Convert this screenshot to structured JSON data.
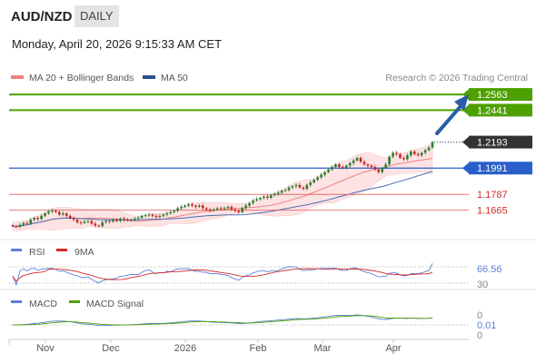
{
  "header": {
    "pair": "AUD/NZD",
    "timeframe": "DAILY",
    "datetime": "Monday, April 20, 2026 9:15:33 AM CET"
  },
  "legend": {
    "ma20_label": "MA 20 + Bollinger Bands",
    "ma50_label": "MA 50",
    "credit": "Research © 2026 Trading Central"
  },
  "colors": {
    "resistance": "#4ea000",
    "pivot": "#2a5fc9",
    "support": "#e05a5a",
    "current": "#333333",
    "arrow": "#2a5ca8",
    "candle_up": "#2e7d32",
    "candle_down": "#c62828",
    "ma20": "#f08080",
    "ma50": "#4a6fb5",
    "bands_fill": "#fde3e3",
    "rsi": "#5b7fd9",
    "rsi_ma": "#d42a2a",
    "macd": "#5b7fd9",
    "macd_signal": "#4ea000"
  },
  "chart_data": [
    {
      "type": "candlestick",
      "ylim": [
        1.145,
        1.262
      ],
      "x_labels": [
        "Nov",
        "Dec",
        "2026",
        "Feb",
        "Mar",
        "Apr"
      ],
      "levels": [
        {
          "value": 1.2563,
          "label": "1.2563",
          "kind": "resistance"
        },
        {
          "value": 1.2441,
          "label": "1.2441",
          "kind": "resistance"
        },
        {
          "value": 1.2193,
          "label": "1.2193",
          "kind": "current"
        },
        {
          "value": 1.1991,
          "label": "1.1991",
          "kind": "pivot"
        },
        {
          "value": 1.1787,
          "label": "1.1787",
          "kind": "support"
        },
        {
          "value": 1.1665,
          "label": "1.1665",
          "kind": "support"
        }
      ],
      "close": [
        1.154,
        1.1535,
        1.155,
        1.1565,
        1.156,
        1.159,
        1.1605,
        1.1595,
        1.162,
        1.164,
        1.1655,
        1.166,
        1.165,
        1.163,
        1.164,
        1.162,
        1.16,
        1.159,
        1.157,
        1.1565,
        1.1575,
        1.158,
        1.156,
        1.1545,
        1.154,
        1.157,
        1.158,
        1.1575,
        1.159,
        1.158,
        1.16,
        1.159,
        1.1585,
        1.159,
        1.16,
        1.1605,
        1.162,
        1.1625,
        1.163,
        1.162,
        1.161,
        1.162,
        1.163,
        1.164,
        1.165,
        1.166,
        1.168,
        1.169,
        1.17,
        1.171,
        1.17,
        1.169,
        1.17,
        1.168,
        1.167,
        1.166,
        1.167,
        1.168,
        1.1675,
        1.168,
        1.169,
        1.167,
        1.166,
        1.165,
        1.168,
        1.17,
        1.172,
        1.174,
        1.175,
        1.176,
        1.177,
        1.176,
        1.178,
        1.179,
        1.18,
        1.1815,
        1.182,
        1.184,
        1.185,
        1.186,
        1.184,
        1.183,
        1.186,
        1.188,
        1.19,
        1.192,
        1.194,
        1.196,
        1.198,
        1.2,
        1.202,
        1.2,
        1.199,
        1.201,
        1.203,
        1.205,
        1.207,
        1.204,
        1.202,
        1.201,
        1.2,
        1.198,
        1.196,
        1.199,
        1.202,
        1.208,
        1.211,
        1.21,
        1.207,
        1.206,
        1.209,
        1.212,
        1.21,
        1.209,
        1.211,
        1.213,
        1.215,
        1.2193
      ]
    },
    {
      "type": "line",
      "title": "RSI",
      "series": [
        {
          "name": "RSI",
          "last": 66.56
        },
        {
          "name": "9MA"
        }
      ],
      "ylim": [
        30,
        70
      ],
      "y_ticks": [
        30,
        66.56
      ],
      "levels": [
        70,
        30
      ]
    },
    {
      "type": "line",
      "title": "MACD",
      "series": [
        {
          "name": "MACD",
          "last": 0.01
        },
        {
          "name": "MACD Signal"
        }
      ],
      "ylim": [
        -0.005,
        0.005
      ],
      "y_ticks": [
        0,
        0.01,
        0
      ]
    }
  ]
}
